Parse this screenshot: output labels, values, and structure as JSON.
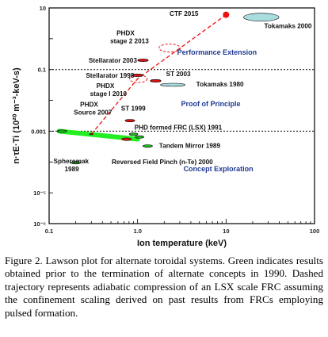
{
  "chart_data": {
    "type": "scatter",
    "title": "",
    "xlabel": "Ion temperature (keV)",
    "ylabel": "n·τE·Ti (10²⁰ m⁻³-keV-s)",
    "x_scale": "log",
    "y_scale": "log",
    "xlim": [
      0.1,
      100
    ],
    "ylim": [
      1e-06,
      10
    ],
    "x_ticks": [
      {
        "value": 0.1,
        "label": "0.1"
      },
      {
        "value": 1,
        "label": "1.0"
      },
      {
        "value": 10,
        "label": "10"
      },
      {
        "value": 100,
        "label": "100"
      }
    ],
    "y_ticks": [
      {
        "value": 10,
        "label": "10"
      },
      {
        "value": 0.1,
        "label": "0.1"
      },
      {
        "value": 0.001,
        "label": "0.001"
      },
      {
        "value": 1e-05,
        "label": "10⁻⁵"
      },
      {
        "value": 1e-06,
        "label": "10⁻⁶"
      }
    ],
    "regions": [
      {
        "name": "Performance Extension",
        "label_x": 2.8,
        "label_y": 0.3
      },
      {
        "name": "Proof of Principle",
        "label_x": 3.1,
        "label_y": 0.0065
      },
      {
        "name": "Concept Exploration",
        "label_x": 3.3,
        "label_y": 5e-05
      }
    ],
    "region_boundaries": [
      0.1,
      0.001
    ],
    "points": [
      {
        "name": "Tokamaks 2000",
        "x": 25,
        "y": 5.0,
        "rx": 0.2,
        "ry": 0.13,
        "color": "#a9dde0",
        "label_x": 27,
        "label_y": 2.2
      },
      {
        "name": "Stellarator 2003",
        "x": 1.15,
        "y": 0.2,
        "rx": 0.06,
        "ry": 0.042,
        "color": "#dd1111",
        "label_x": 0.28,
        "label_y": 0.17
      },
      {
        "name": "Stellarator 1998",
        "x": 1.0,
        "y": 0.065,
        "rx": 0.06,
        "ry": 0.042,
        "color": "#dd1111",
        "label_x": 0.26,
        "label_y": 0.055
      },
      {
        "name": "ST 2003",
        "x": 1.6,
        "y": 0.043,
        "rx": 0.06,
        "ry": 0.042,
        "color": "#dd1111",
        "label_x": 2.1,
        "label_y": 0.062
      },
      {
        "name": "Tokamaks 1980",
        "x": 2.5,
        "y": 0.032,
        "rx": 0.14,
        "ry": 0.05,
        "color": "#a9dde0",
        "label_x": 4.6,
        "label_y": 0.028
      },
      {
        "name": "ST 1999",
        "x": 0.82,
        "y": 0.0022,
        "rx": 0.055,
        "ry": 0.042,
        "color": "#dd1111",
        "label_x": 0.65,
        "label_y": 0.0046
      },
      {
        "name": "PHDX Source 2007",
        "x": 0.3,
        "y": 0.0008,
        "rx": 0.02,
        "ry": 0.02,
        "color": "#dd1111",
        "label_x": 0.19,
        "label_y": 0.0062
      },
      {
        "name": "Tandem Mirror 1989",
        "x": 1.3,
        "y": 0.00033,
        "rx": 0.055,
        "ry": 0.042,
        "color": "#22bb22",
        "label_x": 1.75,
        "label_y": 0.00029
      },
      {
        "name": "Reversed Field Pinch (n-Te) 2000",
        "x": 0.75,
        "y": 0.00055,
        "rx": 0.055,
        "ry": 0.042,
        "color": "#dd1111",
        "label_x": 0.51,
        "label_y": 8.5e-05
      },
      {
        "name": "Spheromak 1989",
        "x": 0.2,
        "y": 9.5e-05,
        "rx": 0.055,
        "ry": 0.042,
        "color": "#22bb22",
        "label_x": 0.112,
        "label_y": 9e-05
      },
      {
        "name": "FRC (green) 1",
        "x": 0.14,
        "y": 0.001,
        "rx": 0.055,
        "ry": 0.042,
        "color": "#22bb22"
      },
      {
        "name": "FRC (green) 2",
        "x": 0.9,
        "y": 0.0008,
        "rx": 0.05,
        "ry": 0.04,
        "color": "#22bb22"
      },
      {
        "name": "FRC (green) 3",
        "x": 1.05,
        "y": 0.00065,
        "rx": 0.05,
        "ry": 0.04,
        "color": "#22bb22"
      }
    ],
    "green_band": {
      "x0": 0.13,
      "y0": 0.001,
      "x1": 1.0,
      "y1": 0.00055,
      "label": "PHD formed FRC (LSX) 1991",
      "label_x": 0.92,
      "label_y": 0.00113
    },
    "trajectory": [
      {
        "x": 0.3,
        "y": 0.0008
      },
      {
        "x": 1.0,
        "y": 0.05
      },
      {
        "x": 10,
        "y": 6.0
      }
    ],
    "trajectory_endpoint": {
      "name": "CTF 2015",
      "x": 10,
      "y": 6.0,
      "color": "#ee1111",
      "label_x": 2.3,
      "label_y": 5.6
    },
    "dashed_circles": [
      {
        "name": "PHDX stage 2 2013",
        "x": 2.3,
        "y": 0.5,
        "rx": 0.12,
        "ry": 0.13,
        "label": "PHDX\nstage 2  2013",
        "label_x": 0.49,
        "label_y": 1.3
      },
      {
        "name": "PHDX stage I 2010",
        "x": 1.02,
        "y": 0.05,
        "rx": 0.1,
        "ry": 0.12,
        "label": "PHDX\nstage I  2010",
        "label_x": 0.29,
        "label_y": 0.025
      }
    ]
  },
  "caption": "Figure 2. Lawson plot for alternate toroidal systems. Green indicates results obtained prior to the termination of alternate concepts in 1990. Dashed trajectory represents adiabatic compression of an LSX scale FRC assuming the confinement scaling derived on past results from FRCs employing pulsed formation."
}
